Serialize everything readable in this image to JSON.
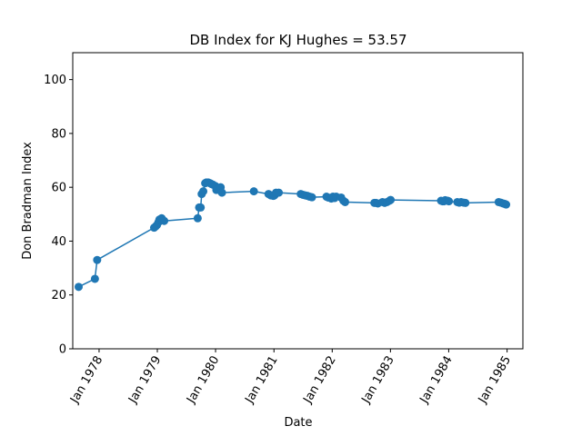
{
  "chart_data": {
    "type": "line",
    "title": "DB Index for KJ Hughes = 53.57",
    "xlabel": "Date",
    "ylabel": "Don Bradman Index",
    "ylim": [
      0,
      110
    ],
    "xlim": [
      "1977-07-20",
      "1985-04-10"
    ],
    "yticks": [
      0,
      20,
      40,
      60,
      80,
      100
    ],
    "xticks": [
      {
        "date": "1978-01-01",
        "label": "Jan 1978"
      },
      {
        "date": "1979-01-01",
        "label": "Jan 1979"
      },
      {
        "date": "1980-01-01",
        "label": "Jan 1980"
      },
      {
        "date": "1981-01-01",
        "label": "Jan 1981"
      },
      {
        "date": "1982-01-01",
        "label": "Jan 1982"
      },
      {
        "date": "1983-01-01",
        "label": "Jan 1983"
      },
      {
        "date": "1984-01-01",
        "label": "Jan 1984"
      },
      {
        "date": "1985-01-01",
        "label": "Jan 1985"
      }
    ],
    "grid": false,
    "color": "#1f77b4",
    "series": [
      {
        "x": [
          "1977-08-26",
          "1977-12-06",
          "1977-12-20",
          "1978-12-12",
          "1978-12-22",
          "1978-12-30",
          "1979-01-08",
          "1979-01-14",
          "1979-01-28",
          "1979-02-02",
          "1979-02-13",
          "1979-09-11",
          "1979-09-20",
          "1979-09-30",
          "1979-10-06",
          "1979-10-16",
          "1979-10-28",
          "1979-11-04",
          "1979-11-16",
          "1979-11-28",
          "1979-12-06",
          "1979-12-15",
          "1979-12-30",
          "1980-01-06",
          "1980-01-19",
          "1980-02-02",
          "1980-02-10",
          "1980-08-28",
          "1980-11-28",
          "1980-12-12",
          "1980-12-28",
          "1981-01-04",
          "1981-01-14",
          "1981-01-31",
          "1981-06-18",
          "1981-07-02",
          "1981-07-16",
          "1981-07-30",
          "1981-08-13",
          "1981-08-27",
          "1981-11-26",
          "1981-12-07",
          "1981-12-26",
          "1982-01-06",
          "1982-01-16",
          "1982-01-26",
          "1982-02-26",
          "1982-03-12",
          "1982-03-23",
          "1982-09-22",
          "1982-10-02",
          "1982-10-14",
          "1982-11-12",
          "1982-11-26",
          "1982-12-10",
          "1982-12-26",
          "1983-01-02",
          "1983-11-14",
          "1983-11-24",
          "1983-12-02",
          "1983-12-10",
          "1983-12-26",
          "1984-01-02",
          "1984-02-24",
          "1984-03-07",
          "1984-03-18",
          "1984-04-04",
          "1984-04-15",
          "1984-11-09",
          "1984-11-23",
          "1984-12-07",
          "1984-12-18",
          "1984-12-26"
        ],
        "y": [
          23.0,
          26.0,
          33.0,
          45.0,
          45.5,
          46.0,
          47.0,
          48.0,
          48.5,
          48.0,
          47.5,
          48.5,
          52.5,
          52.5,
          57.5,
          58.5,
          61.5,
          61.8,
          61.8,
          61.5,
          61.2,
          61.0,
          60.5,
          59.0,
          59.5,
          60.0,
          58.0,
          58.5,
          57.5,
          57.0,
          56.8,
          57.0,
          58.0,
          58.0,
          57.5,
          57.2,
          57.0,
          56.8,
          56.5,
          56.3,
          56.5,
          56.2,
          55.8,
          56.5,
          56.0,
          56.5,
          56.2,
          55.0,
          54.5,
          54.2,
          54.2,
          54.0,
          54.5,
          54.2,
          54.5,
          55.0,
          55.3,
          55.0,
          54.8,
          54.8,
          55.2,
          55.0,
          54.8,
          54.5,
          54.3,
          54.5,
          54.3,
          54.2,
          54.5,
          54.3,
          54.0,
          53.8,
          53.6
        ]
      }
    ]
  }
}
